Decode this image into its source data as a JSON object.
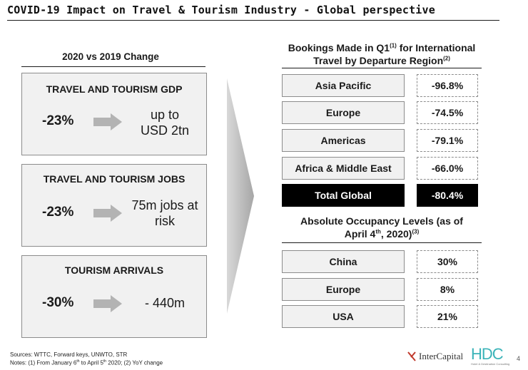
{
  "title": "COVID-19 Impact on Travel & Tourism Industry - Global perspective",
  "left": {
    "heading": "2020 vs 2019 Change",
    "panels": [
      {
        "title": "TRAVEL AND TOURISM GDP",
        "pct": "-23%",
        "value_line1": "up to",
        "value_line2": "USD 2tn"
      },
      {
        "title": "TRAVEL AND TOURISM JOBS",
        "pct": "-23%",
        "value_line1": "75m jobs at",
        "value_line2": "risk"
      },
      {
        "title": "TOURISM ARRIVALS",
        "pct": "-30%",
        "value_line1": "- 440m",
        "value_line2": ""
      }
    ]
  },
  "bookings": {
    "heading_part1": "Bookings Made in Q1",
    "heading_sup1": "(1)",
    "heading_part2": " for International",
    "heading_line2": "Travel by Departure Region",
    "heading_sup2": "(2)",
    "rows": [
      {
        "region": "Asia Pacific",
        "value": "-96.8%"
      },
      {
        "region": "Europe",
        "value": "-74.5%"
      },
      {
        "region": "Americas",
        "value": "-79.1%"
      },
      {
        "region": "Africa & Middle East",
        "value": "-66.0%"
      }
    ],
    "total": {
      "region": "Total Global",
      "value": "-80.4%"
    }
  },
  "occupancy": {
    "heading_line1": "Absolute Occupancy Levels (as of",
    "heading_line2a": "April 4",
    "heading_sup_th": "th",
    "heading_line2b": ", 2020)",
    "heading_sup3": "(3)",
    "rows": [
      {
        "country": "China",
        "value": "30%"
      },
      {
        "country": "Europe",
        "value": "8%"
      },
      {
        "country": "USA",
        "value": "21%"
      }
    ]
  },
  "footer": {
    "sources": "Sources: WTTC, Forward keys, UNWTO, STR",
    "notes_a": "Notes: (1) From January 6",
    "notes_sup_a": "th",
    "notes_b": " to April 5",
    "notes_sup_b": "th",
    "notes_c": " 2020; (2) YoY change"
  },
  "logos": {
    "intercapital": "InterCapital",
    "hdc": "HDC",
    "hdc_tagline": "Hotel & Destination Consulting"
  },
  "page_number": "4",
  "colors": {
    "panel_bg": "#f1f1f1",
    "border": "#8c8c8c",
    "arrow": "#b3b3b3",
    "total_bg": "#000000",
    "hdc_teal": "#3ab3b8"
  }
}
